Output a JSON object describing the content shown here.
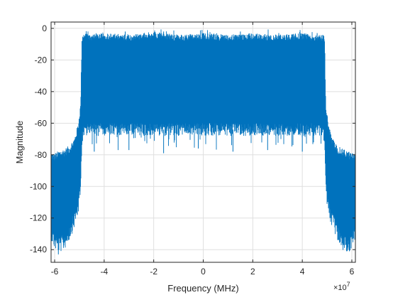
{
  "chart_data": {
    "type": "area",
    "title": "",
    "xlabel": "Frequency (MHz)",
    "ylabel": "Magnitude",
    "x_exponent_base": "×10",
    "x_exponent_power": "7",
    "xlim": [
      -61440000,
      61440000
    ],
    "ylim": [
      -148,
      4
    ],
    "xticks": [
      -60000000,
      -40000000,
      -20000000,
      0,
      20000000,
      40000000,
      60000000
    ],
    "xtick_labels": [
      "-6",
      "-4",
      "-2",
      "0",
      "2",
      "4",
      "6"
    ],
    "yticks": [
      0,
      -20,
      -40,
      -60,
      -80,
      -100,
      -120,
      -140
    ],
    "ytick_labels": [
      "0",
      "-20",
      "-40",
      "-60",
      "-80",
      "-100",
      "-120",
      "-140"
    ],
    "grid": true,
    "line_color": "#0072BD",
    "series": [
      {
        "x": [
          -61440000,
          -60000000,
          -58000000,
          -56000000,
          -54000000,
          -52000000,
          -50500000,
          -49500000,
          -49000000,
          -48500000,
          -45000000,
          -40000000,
          -30000000,
          -20000000,
          -10000000,
          0,
          10000000,
          20000000,
          30000000,
          40000000,
          45000000,
          48500000,
          49000000,
          49500000,
          50500000,
          52000000,
          54000000,
          56000000,
          58000000,
          60000000,
          61440000
        ],
        "upper": [
          -81,
          -82,
          -80,
          -79,
          -77,
          -72,
          -63,
          -50,
          -8,
          -5,
          -6,
          -5,
          -6,
          -4,
          -6,
          -5,
          -6,
          -5,
          -6,
          -5,
          -6,
          -6,
          -8,
          -50,
          -63,
          -72,
          -77,
          -79,
          -80,
          -82,
          -81
        ],
        "lower": [
          -128,
          -134,
          -136,
          -134,
          -128,
          -120,
          -112,
          -100,
          -68,
          -64,
          -64,
          -64,
          -64,
          -64,
          -64,
          -64,
          -64,
          -64,
          -64,
          -64,
          -64,
          -64,
          -68,
          -100,
          -112,
          -120,
          -128,
          -134,
          -136,
          -134,
          -128
        ],
        "upper_peaks": [
          -4,
          -2,
          -2,
          -1,
          -2,
          -3,
          -3
        ],
        "lower_dips": [
          -78,
          -77,
          -79,
          -76,
          -78,
          -77,
          -78,
          -143,
          -141
        ]
      }
    ]
  }
}
